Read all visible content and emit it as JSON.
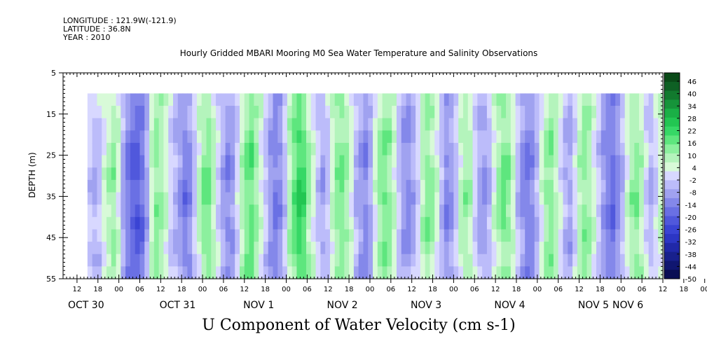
{
  "meta": {
    "longitude": "LONGITUDE : 121.9W(-121.9)",
    "latitude": "LATITUDE : 36.8N",
    "year": "YEAR : 2010"
  },
  "title": "Hourly Gridded MBARI Mooring M0 Sea Water Temperature and Salinity Observations",
  "xtitle": "U Component of Water Velocity (cm s-1)",
  "ylabel": "DEPTH (m)",
  "chart_data": {
    "type": "heatmap",
    "title": "Hourly Gridded MBARI Mooring M0 Sea Water Temperature and Salinity Observations",
    "xlabel": "U Component of Water Velocity (cm s-1)",
    "ylabel": "DEPTH (m)",
    "y_range": [
      5,
      55
    ],
    "y_ticks": [
      "5",
      "15",
      "25",
      "35",
      "45",
      "55"
    ],
    "x_range": [
      "2010-10-30T08:00",
      "2010-11-06T12:00"
    ],
    "data_x_range": [
      "2010-10-30T15:00",
      "2010-11-06T12:00"
    ],
    "data_depth_range": [
      10,
      55
    ],
    "x_hour_ticks": [
      "12",
      "18",
      "00",
      "06",
      "12",
      "18",
      "00",
      "06",
      "12",
      "18",
      "00",
      "06",
      "12",
      "18",
      "00",
      "06",
      "12",
      "18",
      "00",
      "06",
      "12",
      "18",
      "00",
      "06",
      "12",
      "18",
      "00",
      "06",
      "12",
      "18",
      "00",
      "06"
    ],
    "x_day_labels": [
      "OCT 30",
      "OCT 31",
      "NOV  1",
      "NOV  2",
      "NOV  3",
      "NOV  4",
      "NOV  5",
      "NOV  6"
    ],
    "colorbar": {
      "labels": [
        "46",
        "40",
        "34",
        "28",
        "22",
        "16",
        "10",
        "4",
        "-2",
        "-8",
        "-14",
        "-20",
        "-26",
        "-32",
        "-38",
        "-44",
        "-50"
      ],
      "colors": [
        "#0a4a18",
        "#0e6024",
        "#127a2e",
        "#16943a",
        "#1ab046",
        "#22c652",
        "#36d866",
        "#5ee67e",
        "#8cf09e",
        "#b4f4bc",
        "#d8fad8",
        "#d8d8ff",
        "#bcbcfa",
        "#a0a2f0",
        "#8488ea",
        "#6a70e4",
        "#5058dc",
        "#3a44d4",
        "#2c36c4",
        "#2028a8",
        "#18208c",
        "#101670",
        "#0a0e54"
      ]
    },
    "columns_u": [
      -4,
      -6,
      -4,
      2,
      6,
      9,
      3,
      -8,
      -14,
      -18,
      -20,
      -16,
      -8,
      4,
      10,
      8,
      4,
      -2,
      -6,
      -10,
      -14,
      -12,
      -4,
      4,
      10,
      12,
      6,
      -2,
      -8,
      -12,
      -10,
      -2,
      6,
      12,
      14,
      8,
      2,
      -4,
      -10,
      -14,
      -12,
      -4,
      6,
      14,
      18,
      16,
      8,
      2,
      -4,
      -8,
      -4,
      4,
      10,
      12,
      8,
      2,
      -6,
      -10,
      -12,
      -8,
      2,
      8,
      12,
      10,
      4,
      -4,
      -10,
      -12,
      -8,
      -2,
      6,
      10,
      8,
      2,
      -6,
      -12,
      -10,
      -4,
      4,
      8,
      6,
      -2,
      -8,
      -10,
      -6,
      2,
      8,
      12,
      10,
      4,
      -4,
      -10,
      -14,
      -12,
      -6,
      2,
      8,
      10,
      6,
      0,
      -6,
      -8,
      -2,
      6,
      10,
      8,
      2,
      -4,
      -10,
      -14,
      -16,
      -12,
      -6,
      2,
      8,
      10,
      6,
      -2,
      -6,
      -2,
      4
    ],
    "depth_gradient": "stronger magnitude at depth 30-50 m"
  }
}
